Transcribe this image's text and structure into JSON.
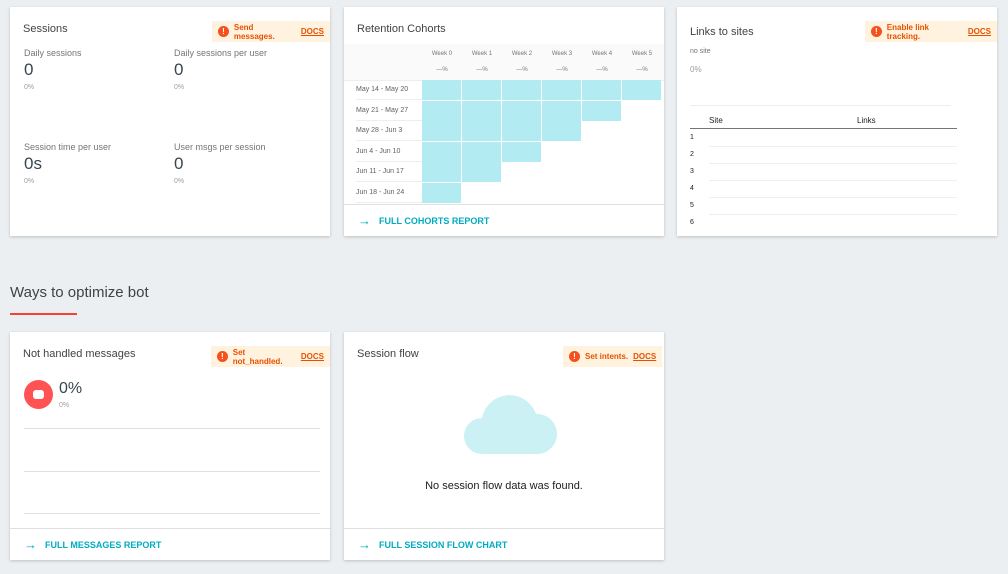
{
  "sessions": {
    "title": "Sessions",
    "warning": "Send messages.",
    "docs": "DOCS",
    "metrics": [
      {
        "label": "Daily sessions",
        "value": "0",
        "pct": "0%"
      },
      {
        "label": "Daily sessions per user",
        "value": "0",
        "pct": "0%"
      },
      {
        "label": "Session time per user",
        "value": "0s",
        "pct": "0%"
      },
      {
        "label": "User msgs per session",
        "value": "0",
        "pct": "0%"
      }
    ]
  },
  "cohorts": {
    "title": "Retention Cohorts",
    "weeks": [
      "Week 0",
      "Week 1",
      "Week 2",
      "Week 3",
      "Week 4",
      "Week 5"
    ],
    "week_pcts": [
      "—%",
      "—%",
      "—%",
      "—%",
      "—%",
      "—%"
    ],
    "rows": [
      "May 14 - May 20",
      "May 21 - May 27",
      "May 28 - Jun 3",
      "Jun 4 - Jun 10",
      "Jun 11 - Jun 17",
      "Jun 18 - Jun 24"
    ],
    "footer": "FULL COHORTS REPORT",
    "cell_color": "#b2ebf2"
  },
  "links": {
    "title": "Links to sites",
    "warning": "Enable link tracking.",
    "docs": "DOCS",
    "no_site": "no site",
    "pct": "0%",
    "col_site": "Site",
    "col_links": "Links",
    "rows": [
      "1",
      "2",
      "3",
      "4",
      "5",
      "6"
    ]
  },
  "section": {
    "title": "Ways to optimize bot"
  },
  "not_handled": {
    "title": "Not handled messages",
    "warning": "Set not_handled.",
    "docs": "DOCS",
    "value": "0%",
    "pct": "0%",
    "footer": "FULL MESSAGES REPORT"
  },
  "session_flow": {
    "title": "Session flow",
    "warning": "Set intents.",
    "docs": "DOCS",
    "empty": "No session flow data was found.",
    "footer": "FULL SESSION FLOW CHART"
  }
}
